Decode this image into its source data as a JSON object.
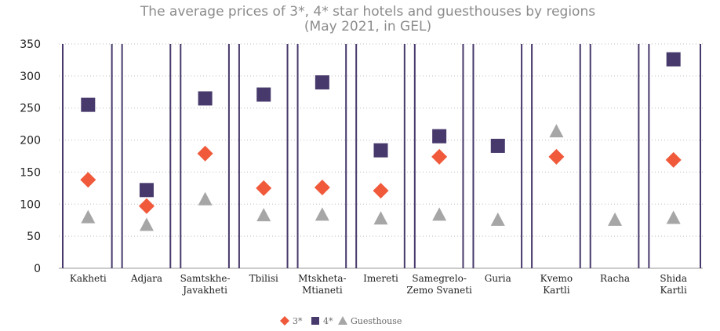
{
  "chart_data": {
    "type": "scatter",
    "title": "The average prices of 3*, 4* star hotels and guesthouses by regions",
    "subtitle": "(May 2021, in GEL)",
    "categories": [
      [
        "Kakheti"
      ],
      [
        "Adjara"
      ],
      [
        "Samtskhe-",
        "Javakheti"
      ],
      [
        "Tbilisi"
      ],
      [
        "Mtskheta-",
        "Mtianeti"
      ],
      [
        "Imereti"
      ],
      [
        "Samegrelo-",
        "Zemo Svaneti"
      ],
      [
        "Guria"
      ],
      [
        "Kvemo",
        "Kartli"
      ],
      [
        "Racha"
      ],
      [
        "Shida",
        "Kartli"
      ]
    ],
    "ylim": [
      0,
      350
    ],
    "yticks": [
      0,
      50,
      100,
      150,
      200,
      250,
      300,
      350
    ],
    "grid": true,
    "legend_position": "bottom",
    "series": [
      {
        "name": "3*",
        "marker": "diamond",
        "color": "#f05a3b",
        "values": [
          138,
          97,
          179,
          125,
          126,
          121,
          174,
          null,
          174,
          null,
          169
        ]
      },
      {
        "name": "4*",
        "marker": "square",
        "color": "#47396b",
        "values": [
          255,
          122,
          265,
          271,
          290,
          184,
          206,
          191,
          null,
          null,
          326
        ]
      },
      {
        "name": "Guesthouse",
        "marker": "triangle",
        "color": "#a6a6a6",
        "values": [
          80,
          68,
          108,
          83,
          84,
          78,
          84,
          76,
          214,
          76,
          79
        ]
      }
    ]
  }
}
